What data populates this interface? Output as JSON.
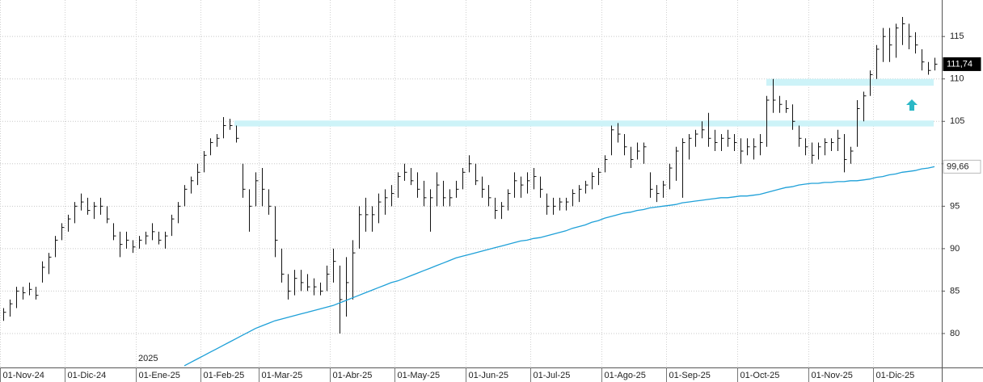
{
  "chart_data": {
    "type": "ohlc",
    "ylim": [
      76,
      119.3
    ],
    "yticks": [
      80,
      85,
      90,
      95,
      100,
      105,
      110,
      115
    ],
    "grid": true,
    "color": "#111111",
    "ma_color": "#1ea0d8",
    "zone_color": "#cdf3f8",
    "year_label": "2025",
    "categories": [
      "01-Nov-24",
      null,
      null,
      null,
      null,
      null,
      null,
      null,
      null,
      null,
      "01-Dic-24",
      null,
      null,
      null,
      null,
      null,
      null,
      null,
      null,
      null,
      null,
      "01-Ene-25",
      null,
      null,
      null,
      null,
      null,
      null,
      null,
      null,
      null,
      "01-Feb-25",
      null,
      null,
      null,
      null,
      null,
      null,
      null,
      null,
      "01-Mar-25",
      null,
      null,
      null,
      null,
      null,
      null,
      null,
      null,
      null,
      null,
      "01-Abr-25",
      null,
      null,
      null,
      null,
      null,
      null,
      null,
      null,
      null,
      "01-May-25",
      null,
      null,
      null,
      null,
      null,
      null,
      null,
      null,
      null,
      null,
      "01-Jun-25",
      null,
      null,
      null,
      null,
      null,
      null,
      null,
      null,
      null,
      "01-Jul-25",
      null,
      null,
      null,
      null,
      null,
      null,
      null,
      null,
      null,
      null,
      "01-Ago-25",
      null,
      null,
      null,
      null,
      null,
      null,
      null,
      null,
      null,
      "01-Sep-25",
      null,
      null,
      null,
      null,
      null,
      null,
      null,
      null,
      null,
      null,
      "01-Oct-25",
      null,
      null,
      null,
      null,
      null,
      null,
      null,
      null,
      null,
      null,
      "01-Nov-25",
      null,
      null,
      null,
      null,
      null,
      null,
      null,
      null,
      null,
      "01-Dic-25",
      null,
      null,
      null,
      null,
      null,
      null,
      null,
      null,
      null
    ],
    "high": [
      83,
      84,
      85.5,
      85.5,
      86,
      85.5,
      88.5,
      89.5,
      91.5,
      93,
      94,
      95.5,
      96.5,
      96,
      95.5,
      96,
      95,
      93,
      92,
      92,
      91,
      91.5,
      92,
      93,
      92,
      92,
      94,
      95.5,
      97.5,
      98.5,
      100,
      101.5,
      103,
      103.5,
      105.5,
      105.3,
      104.5,
      100,
      97,
      99,
      99.5,
      97,
      95,
      90,
      87,
      87.5,
      87.5,
      87,
      86.5,
      86,
      88,
      90,
      88,
      89,
      91,
      95,
      96,
      95,
      96.5,
      97,
      97.5,
      99,
      100,
      99.5,
      99,
      98,
      97,
      99,
      98,
      97,
      98,
      99.5,
      101,
      100,
      98.5,
      97.5,
      96,
      95.5,
      97,
      99,
      98.5,
      99,
      99.5,
      98.5,
      96.5,
      96,
      96,
      96,
      97,
      97.5,
      98,
      99,
      99.5,
      101,
      104.5,
      104.8,
      103.5,
      102,
      102.5,
      102.5,
      99,
      97.5,
      98,
      100,
      102,
      103,
      103.5,
      104,
      105,
      106,
      104,
      103.5,
      104,
      103.5,
      103,
      103,
      103,
      103.5,
      108,
      110,
      108,
      107.5,
      107,
      104.5,
      103,
      102.5,
      102.5,
      103,
      103,
      104,
      103.5,
      102,
      107.5,
      108.5,
      111,
      114,
      116,
      116,
      116.5,
      117.3,
      116.5,
      115.5,
      113.5,
      112,
      112.5
    ],
    "low": [
      81.5,
      82,
      83,
      84,
      84.5,
      84,
      86,
      87,
      89,
      91,
      92,
      93,
      94.5,
      94,
      93.5,
      94,
      93,
      91,
      89,
      90,
      89.5,
      90,
      90.5,
      91,
      90.5,
      90,
      91.5,
      93,
      95,
      96.5,
      97.5,
      99,
      101,
      102,
      103,
      104,
      102.5,
      96,
      92,
      95,
      95,
      94,
      89,
      86,
      84,
      84.5,
      85,
      85,
      84.5,
      84.5,
      85,
      86,
      80,
      82,
      84,
      90,
      92,
      92,
      93,
      94,
      95,
      96,
      98,
      97.5,
      96,
      95,
      92,
      95,
      95,
      95,
      96,
      97,
      99,
      97.5,
      96,
      95,
      93.5,
      93.5,
      94.5,
      96,
      96,
      96.5,
      97,
      96,
      94,
      94,
      94.5,
      94.5,
      95,
      95.5,
      96.5,
      97,
      97.5,
      99,
      101,
      102.5,
      101,
      99.5,
      100.5,
      100,
      96,
      95.5,
      96,
      97,
      98,
      96,
      100.5,
      102,
      103,
      102,
      101.5,
      101.5,
      102,
      101.5,
      100,
      101,
      100.5,
      101,
      102,
      106,
      106,
      106,
      104,
      102,
      101,
      100,
      100.5,
      101,
      101.5,
      101.5,
      99,
      100,
      102,
      105,
      108,
      110,
      112,
      112,
      112.5,
      114,
      113.5,
      113,
      111,
      110.5,
      111
    ],
    "close": [
      82.5,
      83.5,
      85,
      84.8,
      85.2,
      84.5,
      87.8,
      89,
      91,
      92.5,
      93.5,
      95,
      95.5,
      94.5,
      95,
      95,
      93.5,
      91.5,
      90.5,
      91,
      90.2,
      91,
      91.5,
      92,
      91,
      91.5,
      93.5,
      95,
      97,
      98,
      99,
      101,
      102.5,
      103,
      104.5,
      104.5,
      103,
      97,
      95,
      98,
      97,
      95,
      91,
      87,
      85,
      86.5,
      86,
      85.5,
      85.5,
      85,
      87,
      88.5,
      84,
      86,
      89.5,
      94,
      94,
      94,
      95.5,
      96,
      96.5,
      98.5,
      99,
      98,
      97,
      96,
      96,
      97.5,
      96,
      96,
      97,
      99,
      100,
      98,
      97,
      96,
      94.5,
      95,
      96.5,
      98,
      97.5,
      98,
      98.5,
      97,
      95,
      95,
      95.5,
      95.5,
      96.5,
      97,
      97.5,
      98.5,
      99,
      100.5,
      104,
      103.5,
      102,
      100.5,
      101.5,
      102,
      97,
      96.5,
      97.5,
      99.5,
      101.5,
      102.5,
      103,
      103.5,
      104,
      103,
      102.5,
      103,
      103,
      102.5,
      101.5,
      102,
      102,
      102.5,
      107.5,
      107.5,
      107,
      106.5,
      105,
      103,
      102,
      101,
      102,
      102.5,
      102.5,
      103,
      100.5,
      101.5,
      106.5,
      108,
      110.5,
      113.5,
      115,
      114,
      116,
      116.5,
      115,
      114,
      112,
      111,
      111.74
    ],
    "ma": [
      null,
      null,
      null,
      null,
      null,
      null,
      null,
      null,
      null,
      null,
      null,
      null,
      null,
      null,
      null,
      null,
      null,
      null,
      null,
      null,
      null,
      null,
      null,
      null,
      null,
      null,
      null,
      null,
      76.2,
      76.6,
      77.0,
      77.4,
      77.8,
      78.2,
      78.6,
      79.0,
      79.4,
      79.8,
      80.2,
      80.6,
      80.9,
      81.2,
      81.5,
      81.7,
      81.9,
      82.1,
      82.3,
      82.5,
      82.7,
      82.9,
      83.1,
      83.3,
      83.6,
      83.9,
      84.2,
      84.5,
      84.8,
      85.1,
      85.4,
      85.7,
      86.0,
      86.2,
      86.5,
      86.8,
      87.1,
      87.4,
      87.7,
      88.0,
      88.3,
      88.6,
      88.9,
      89.1,
      89.3,
      89.5,
      89.7,
      89.9,
      90.1,
      90.3,
      90.5,
      90.7,
      90.9,
      91.0,
      91.2,
      91.3,
      91.5,
      91.7,
      91.9,
      92.1,
      92.4,
      92.6,
      92.8,
      93.1,
      93.3,
      93.6,
      93.8,
      94.0,
      94.2,
      94.3,
      94.5,
      94.6,
      94.8,
      94.9,
      95.0,
      95.1,
      95.2,
      95.4,
      95.5,
      95.6,
      95.7,
      95.8,
      95.9,
      96.0,
      96.0,
      96.1,
      96.2,
      96.2,
      96.3,
      96.4,
      96.6,
      96.8,
      97.0,
      97.2,
      97.3,
      97.5,
      97.6,
      97.7,
      97.7,
      97.8,
      97.8,
      97.9,
      97.9,
      98.0,
      98.0,
      98.1,
      98.2,
      98.4,
      98.5,
      98.7,
      98.8,
      99.0,
      99.1,
      99.2,
      99.4,
      99.5,
      99.66
    ],
    "zones": [
      [
        104.4,
        105.1
      ],
      [
        109.2,
        110.0
      ]
    ],
    "last_labels": [
      {
        "value": 111.74,
        "label": "111,74"
      },
      {
        "value": 99.66,
        "label": "99,66"
      }
    ]
  }
}
